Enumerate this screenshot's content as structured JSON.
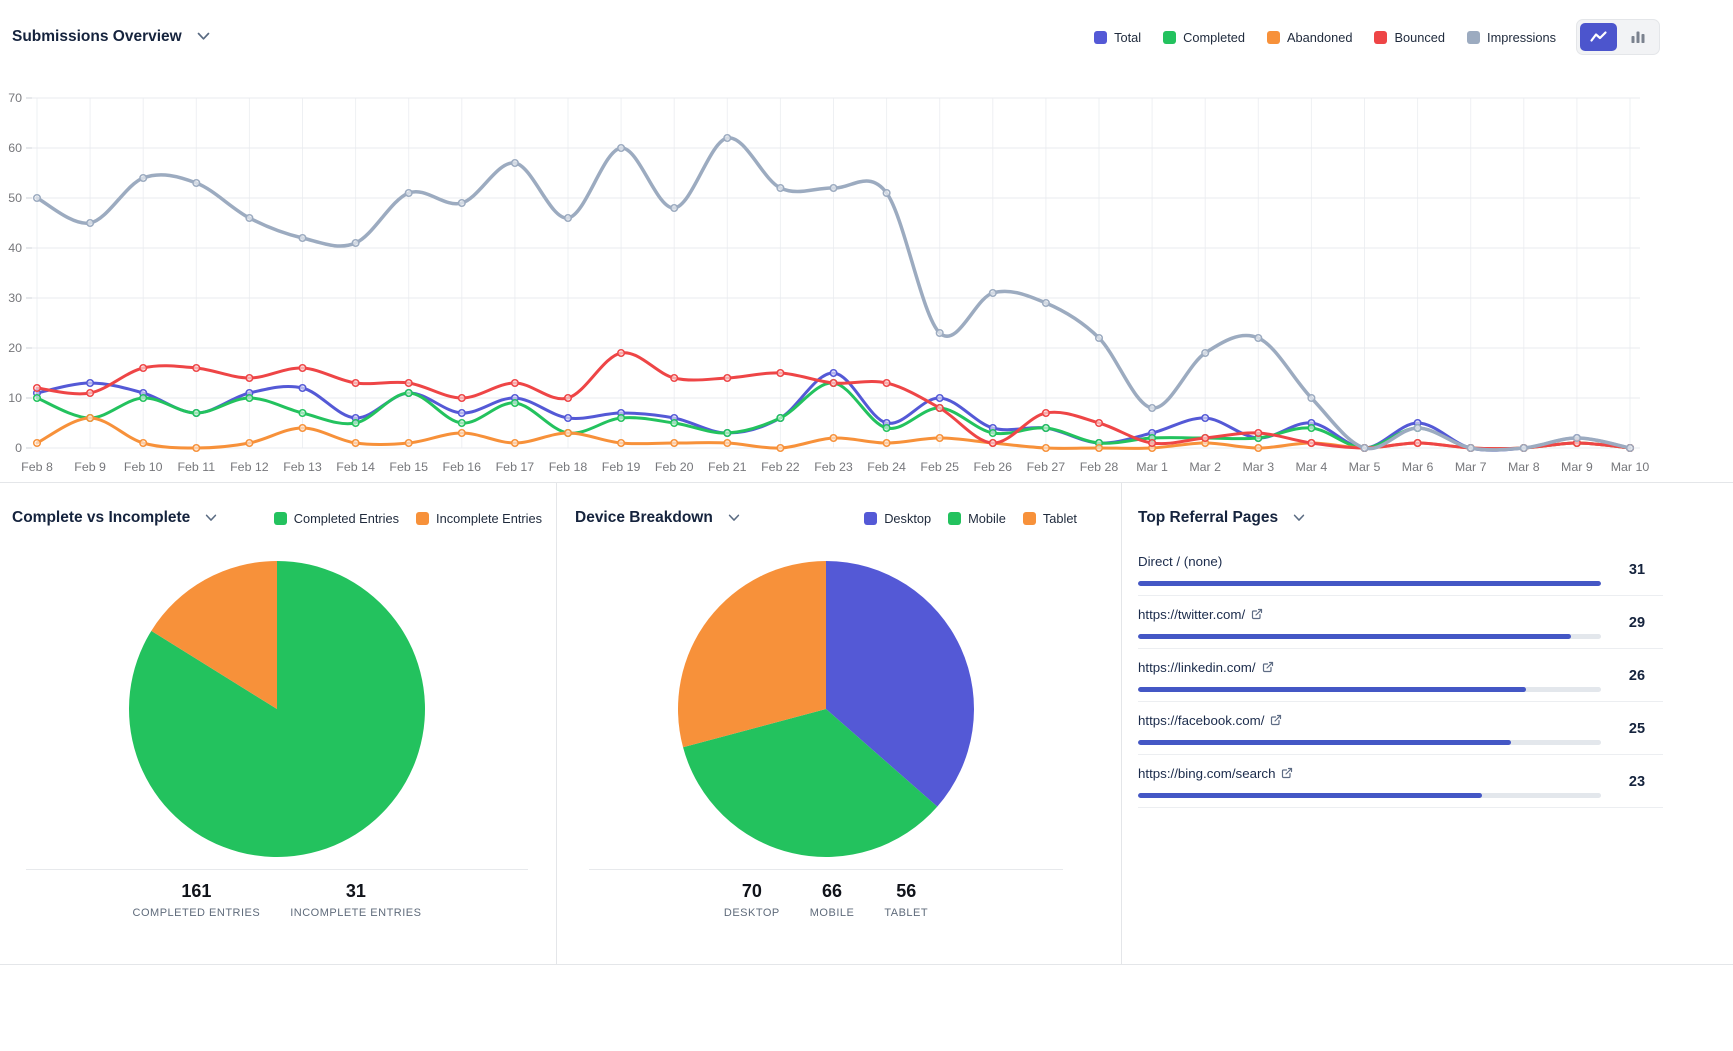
{
  "chart_data": [
    {
      "id": "submissions-overview",
      "type": "line",
      "title": "Submissions Overview",
      "legend_position": "top-right",
      "active_view": "line",
      "view_options": [
        "line",
        "bar"
      ],
      "ylim": [
        0,
        70
      ],
      "y_ticks": [
        0,
        10,
        20,
        30,
        40,
        50,
        60,
        70
      ],
      "grid": true,
      "categories": [
        "Feb 8",
        "Feb 9",
        "Feb 10",
        "Feb 11",
        "Feb 12",
        "Feb 13",
        "Feb 14",
        "Feb 15",
        "Feb 16",
        "Feb 17",
        "Feb 18",
        "Feb 19",
        "Feb 20",
        "Feb 21",
        "Feb 22",
        "Feb 23",
        "Feb 24",
        "Feb 25",
        "Feb 26",
        "Feb 27",
        "Feb 28",
        "Mar 1",
        "Mar 2",
        "Mar 3",
        "Mar 4",
        "Mar 5",
        "Mar 6",
        "Mar 7",
        "Mar 8",
        "Mar 9",
        "Mar 10"
      ],
      "series": [
        {
          "name": "Total",
          "color": "#5459d6",
          "values": [
            11,
            13,
            11,
            7,
            11,
            12,
            6,
            11,
            7,
            10,
            6,
            7,
            6,
            3,
            6,
            15,
            5,
            10,
            4,
            4,
            1,
            3,
            6,
            2,
            5,
            0,
            5,
            0,
            0,
            2,
            0
          ]
        },
        {
          "name": "Completed",
          "color": "#23c25e",
          "values": [
            10,
            6,
            10,
            7,
            10,
            7,
            5,
            11,
            5,
            9,
            3,
            6,
            5,
            3,
            6,
            13,
            4,
            8,
            3,
            4,
            1,
            2,
            2,
            2,
            4,
            0,
            4,
            0,
            0,
            1,
            0
          ]
        },
        {
          "name": "Abandoned",
          "color": "#f7913a",
          "values": [
            1,
            6,
            1,
            0,
            1,
            4,
            1,
            1,
            3,
            1,
            3,
            1,
            1,
            1,
            0,
            2,
            1,
            2,
            1,
            0,
            0,
            0,
            1,
            0,
            1,
            0,
            1,
            0,
            0,
            1,
            0
          ]
        },
        {
          "name": "Bounced",
          "color": "#ee4546",
          "values": [
            12,
            11,
            16,
            16,
            14,
            16,
            13,
            13,
            10,
            13,
            10,
            19,
            14,
            14,
            15,
            13,
            13,
            8,
            1,
            7,
            5,
            1,
            2,
            3,
            1,
            0,
            1,
            0,
            0,
            1,
            0
          ]
        },
        {
          "name": "Impressions",
          "color": "#9cabc0",
          "values": [
            50,
            45,
            54,
            53,
            46,
            42,
            41,
            51,
            49,
            57,
            46,
            60,
            48,
            62,
            52,
            52,
            51,
            23,
            31,
            29,
            22,
            8,
            19,
            22,
            10,
            0,
            4,
            0,
            0,
            2,
            0
          ]
        }
      ]
    },
    {
      "id": "complete-vs-incomplete",
      "type": "pie",
      "title": "Complete vs Incomplete",
      "slices": [
        {
          "label": "Completed Entries",
          "value": 161,
          "color": "#23c25e"
        },
        {
          "label": "Incomplete Entries",
          "value": 31,
          "color": "#f7913a"
        }
      ],
      "stats": [
        {
          "value": "161",
          "label": "COMPLETED ENTRIES"
        },
        {
          "value": "31",
          "label": "INCOMPLETE ENTRIES"
        }
      ]
    },
    {
      "id": "device-breakdown",
      "type": "pie",
      "title": "Device Breakdown",
      "slices": [
        {
          "label": "Desktop",
          "value": 70,
          "color": "#5459d6"
        },
        {
          "label": "Mobile",
          "value": 66,
          "color": "#23c25e"
        },
        {
          "label": "Tablet",
          "value": 56,
          "color": "#f7913a"
        }
      ],
      "stats": [
        {
          "value": "70",
          "label": "DESKTOP"
        },
        {
          "value": "66",
          "label": "MOBILE"
        },
        {
          "value": "56",
          "label": "TABLET"
        }
      ]
    },
    {
      "id": "top-referral-pages",
      "type": "bar",
      "title": "Top Referral Pages",
      "max": 31,
      "bar_color": "#4457c5",
      "track_color": "#e3e7ec",
      "rows": [
        {
          "label": "Direct / (none)",
          "value": 31,
          "external": false
        },
        {
          "label": "https://twitter.com/",
          "value": 29,
          "external": true
        },
        {
          "label": "https://linkedin.com/",
          "value": 26,
          "external": true
        },
        {
          "label": "https://facebook.com/",
          "value": 25,
          "external": true
        },
        {
          "label": "https://bing.com/search",
          "value": 23,
          "external": true
        }
      ]
    }
  ]
}
